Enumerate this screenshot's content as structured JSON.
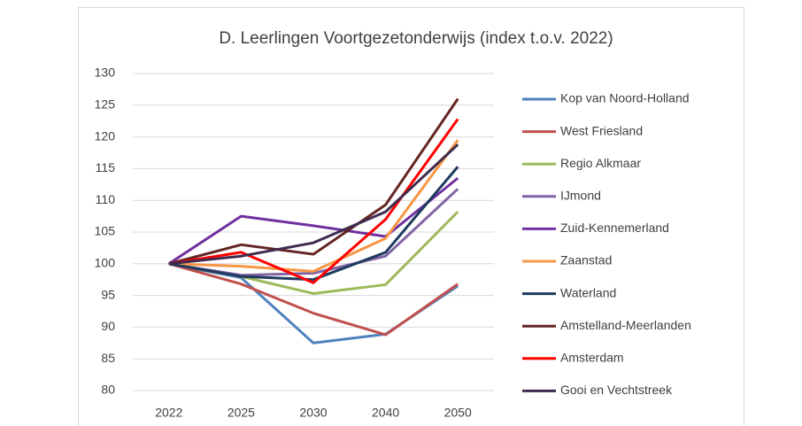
{
  "chart_data": {
    "type": "line",
    "title": "D. Leerlingen Voortgezetonderwijs (index t.o.v. 2022)",
    "categories": [
      "2022",
      "2025",
      "2030",
      "2040",
      "2050"
    ],
    "ylim": [
      80,
      130
    ],
    "yticks": [
      80,
      85,
      90,
      95,
      100,
      105,
      110,
      115,
      120,
      125,
      130
    ],
    "grid": true,
    "legend": "right",
    "series": [
      {
        "name": "Kop van Noord-Holland",
        "color": "#4f81bd",
        "values": [
          100,
          97.8,
          87.5,
          88.9,
          96.5
        ]
      },
      {
        "name": "West Friesland",
        "color": "#c0504d",
        "values": [
          100,
          96.8,
          92.2,
          88.8,
          96.8
        ]
      },
      {
        "name": "Regio Alkmaar",
        "color": "#9bbb59",
        "values": [
          100,
          98,
          95.3,
          96.7,
          108.2
        ]
      },
      {
        "name": "IJmond",
        "color": "#8064a2",
        "values": [
          100,
          98.2,
          98.5,
          101.2,
          111.8
        ]
      },
      {
        "name": "Zuid-Kennemerland",
        "color": "#7030a0",
        "values": [
          100,
          107.5,
          106,
          104.3,
          113.5
        ]
      },
      {
        "name": "Zaanstad",
        "color": "#f79646",
        "values": [
          100,
          99.6,
          98.8,
          104,
          119.5
        ]
      },
      {
        "name": "Waterland",
        "color": "#1f3a5f",
        "values": [
          100,
          98,
          97.5,
          101.8,
          115.3
        ]
      },
      {
        "name": "Amstelland-Meerlanden",
        "color": "#632523",
        "values": [
          100,
          103,
          101.5,
          109.3,
          126
        ]
      },
      {
        "name": "Amsterdam",
        "color": "#ff0000",
        "values": [
          100,
          101.8,
          97,
          107,
          122.8
        ]
      },
      {
        "name": "Gooi en Vechtstreek",
        "color": "#3f2b4e",
        "values": [
          100,
          101.2,
          103.3,
          108.2,
          118.8
        ]
      }
    ]
  }
}
